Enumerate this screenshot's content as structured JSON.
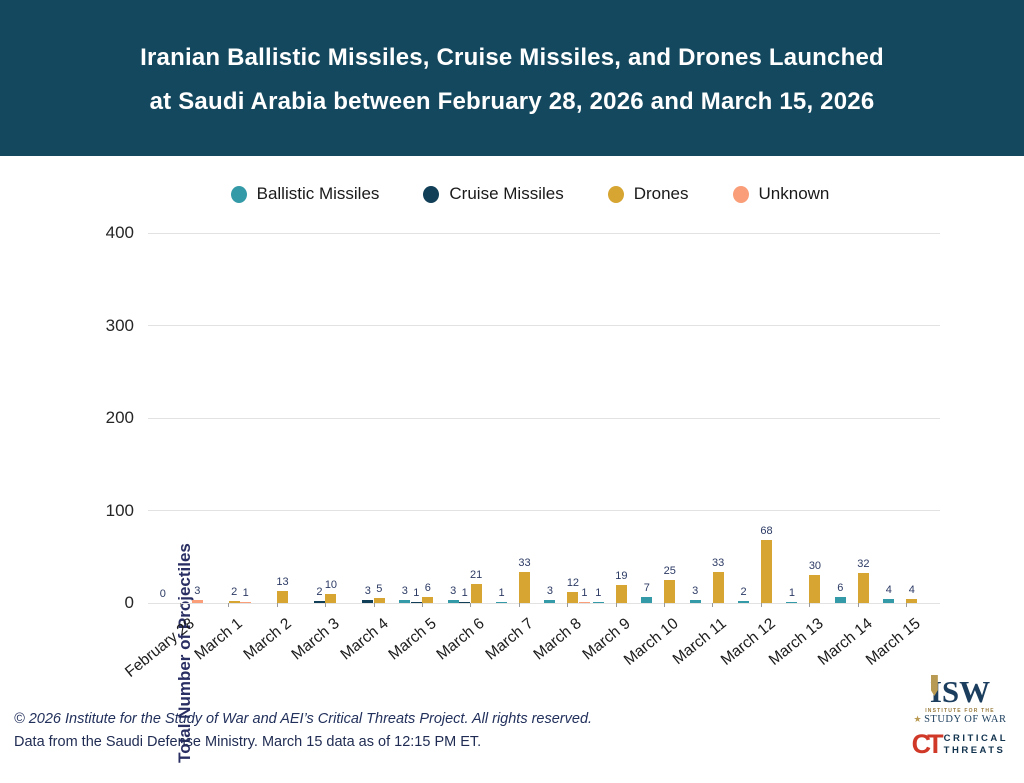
{
  "header": {
    "title_line1": "Iranian Ballistic Missiles, Cruise Missiles, and Drones Launched",
    "title_line2": "at Saudi Arabia between February 28, 2026 and March 15, 2026"
  },
  "legend": {
    "items": [
      {
        "label": "Ballistic Missiles",
        "color": "#359aa8"
      },
      {
        "label": "Cruise Missiles",
        "color": "#113f57"
      },
      {
        "label": "Drones",
        "color": "#d6a532"
      },
      {
        "label": "Unknown",
        "color": "#f99e78"
      }
    ]
  },
  "chart_data": {
    "type": "bar",
    "title": "Iranian Ballistic Missiles, Cruise Missiles, and Drones Launched at Saudi Arabia between February 28, 2026 and March 15, 2026",
    "xlabel": "",
    "ylabel": "Total Number of Projectiles",
    "ylim": [
      0,
      400
    ],
    "yticks": [
      0,
      100,
      200,
      300,
      400
    ],
    "grid": true,
    "legend_position": "top",
    "categories": [
      "February 28",
      "March 1",
      "March 2",
      "March 3",
      "March 4",
      "March 5",
      "March 6",
      "March 7",
      "March 8",
      "March 9",
      "March 10",
      "March 11",
      "March 12",
      "March 13",
      "March 14",
      "March 15"
    ],
    "series": [
      {
        "name": "Ballistic Missiles",
        "color": "#359aa8",
        "values": [
          0,
          null,
          null,
          null,
          null,
          3,
          3,
          1,
          3,
          1,
          7,
          3,
          2,
          1,
          6,
          4
        ]
      },
      {
        "name": "Cruise Missiles",
        "color": "#113f57",
        "values": [
          null,
          null,
          null,
          2,
          3,
          1,
          1,
          null,
          null,
          null,
          null,
          null,
          null,
          null,
          null,
          null
        ]
      },
      {
        "name": "Drones",
        "color": "#d6a532",
        "values": [
          null,
          2,
          13,
          10,
          5,
          6,
          21,
          33,
          12,
          19,
          25,
          33,
          68,
          30,
          32,
          4
        ]
      },
      {
        "name": "Unknown",
        "color": "#f99e78",
        "values": [
          3,
          1,
          null,
          null,
          null,
          null,
          null,
          null,
          1,
          null,
          null,
          null,
          null,
          null,
          null,
          null
        ]
      }
    ]
  },
  "footer": {
    "line1": "© 2026 Institute for the Study of War and AEI’s Critical Threats Project. All rights reserved.",
    "line2": "Data from the Saudi Defense Ministry. March 15 data as of 12:15 PM ET."
  },
  "logos": {
    "isw": {
      "acronym": "ISW",
      "line1": "INSTITUTE FOR THE",
      "line2": "STUDY OF WAR"
    },
    "ct": {
      "acronym": "CT",
      "line1": "CRITICAL",
      "line2": "THREATS"
    }
  },
  "colors": {
    "header_bg": "#14485e",
    "accent_gold": "#b99a52",
    "logo_red": "#d03928"
  }
}
